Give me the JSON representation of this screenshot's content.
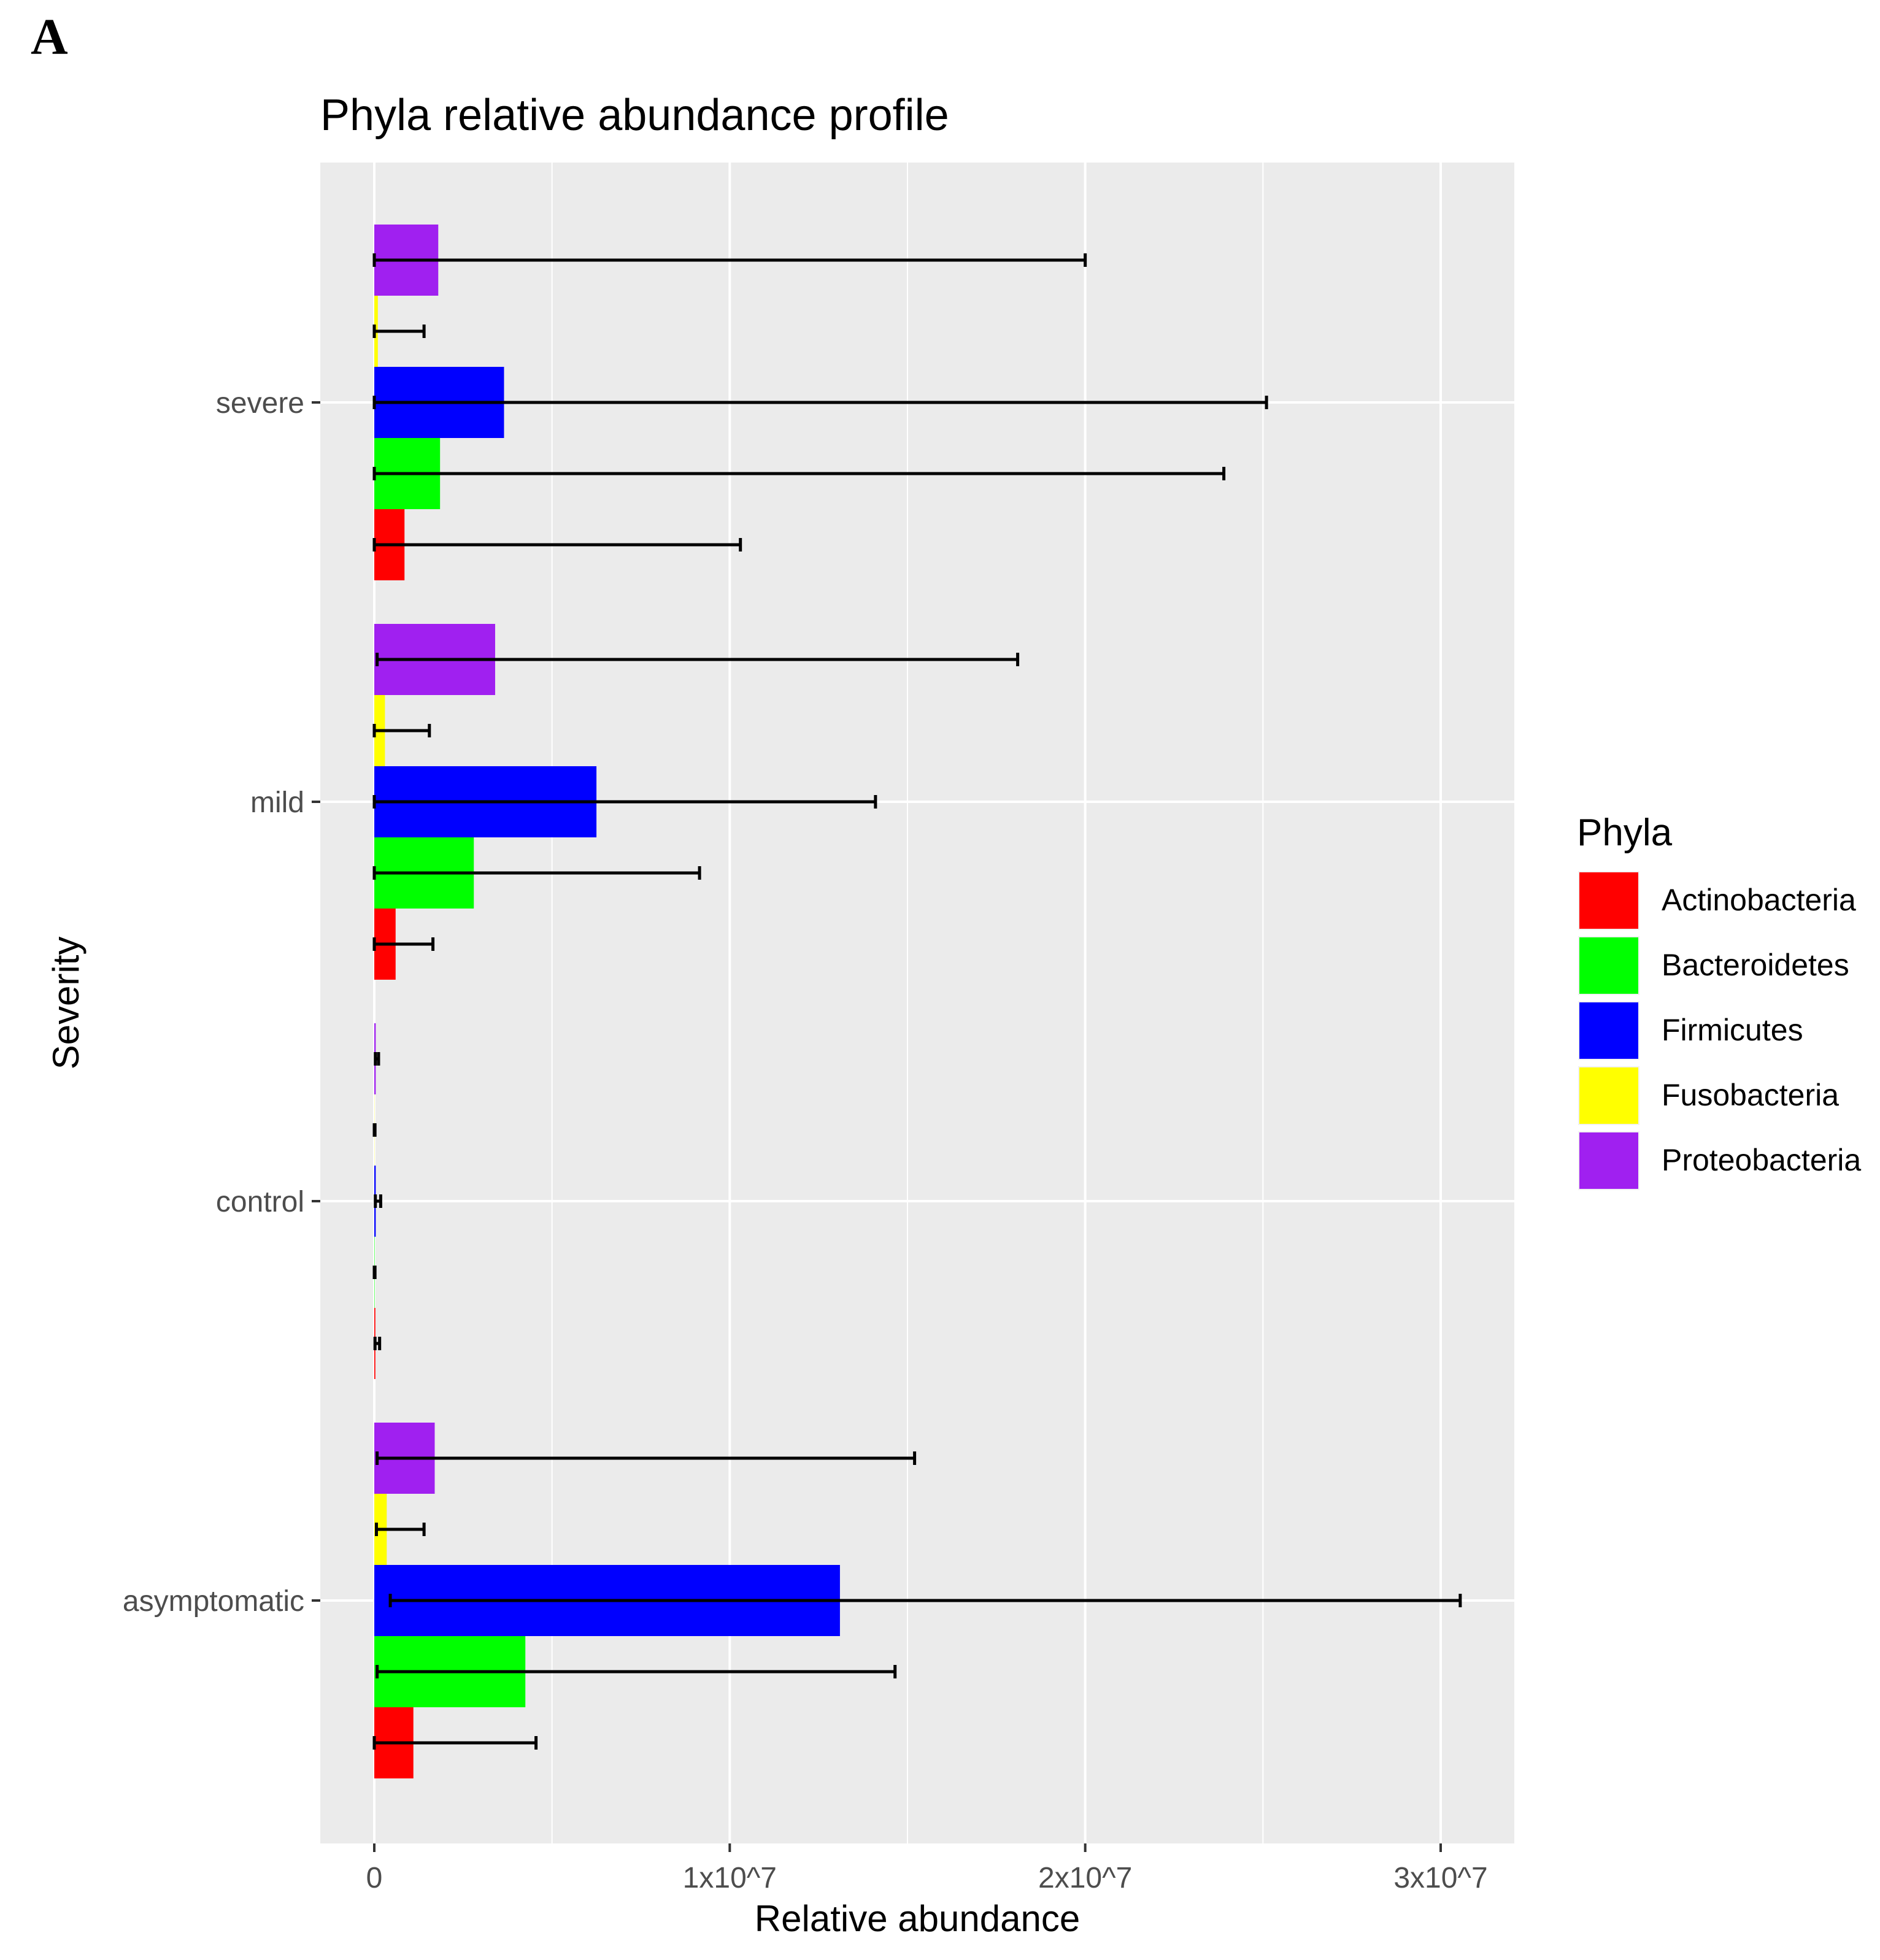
{
  "panel_label": "A",
  "colors": {
    "panel_bg": "#EBEBEB",
    "grid": "#FFFFFF",
    "axis_text": "#4D4D4D",
    "title_text": "#000000",
    "error_bar": "#000000"
  },
  "chart_data": {
    "type": "bar",
    "orientation": "horizontal",
    "title": "Phyla relative abundance profile",
    "xlabel": "Relative abundance",
    "ylabel": "Severity",
    "xlim": [
      -1500000,
      32000000
    ],
    "x_ticks": [
      0,
      10000000,
      20000000,
      30000000
    ],
    "x_tick_labels": [
      "0",
      "1x10^7",
      "2x10^7",
      "3x10^7"
    ],
    "categories": [
      "severe",
      "mild",
      "control",
      "asymptomatic"
    ],
    "legend": {
      "title": "Phyla",
      "position": "right",
      "entries": [
        {
          "name": "Actinobacteria",
          "color": "#FF0000"
        },
        {
          "name": "Bacteroidetes",
          "color": "#00FF00"
        },
        {
          "name": "Firmicutes",
          "color": "#0000FF"
        },
        {
          "name": "Fusobacteria",
          "color": "#FFFF00"
        },
        {
          "name": "Proteobacteria",
          "color": "#A020F0"
        }
      ]
    },
    "series": [
      {
        "name": "Actinobacteria",
        "color": "#FF0000",
        "values": [
          850000,
          600000,
          30000,
          1100000
        ],
        "error_low": [
          0,
          0,
          20000,
          0
        ],
        "error_high": [
          10300000,
          1650000,
          150000,
          4550000
        ]
      },
      {
        "name": "Bacteroidetes",
        "color": "#00FF00",
        "values": [
          1850000,
          2800000,
          10000,
          4250000
        ],
        "error_low": [
          0,
          0,
          0,
          80000
        ],
        "error_high": [
          23900000,
          9150000,
          20000,
          14650000
        ]
      },
      {
        "name": "Firmicutes",
        "color": "#0000FF",
        "values": [
          3650000,
          6250000,
          40000,
          13100000
        ],
        "error_low": [
          0,
          0,
          30000,
          450000
        ],
        "error_high": [
          25100000,
          14100000,
          180000,
          30550000
        ]
      },
      {
        "name": "Fusobacteria",
        "color": "#FFFF00",
        "values": [
          100000,
          300000,
          5000,
          350000
        ],
        "error_low": [
          0,
          0,
          0,
          60000
        ],
        "error_high": [
          1400000,
          1550000,
          20000,
          1400000
        ]
      },
      {
        "name": "Proteobacteria",
        "color": "#A020F0",
        "values": [
          1800000,
          3400000,
          40000,
          1700000
        ],
        "error_low": [
          0,
          80000,
          30000,
          80000
        ],
        "error_high": [
          20000000,
          18100000,
          120000,
          15200000
        ]
      }
    ]
  }
}
